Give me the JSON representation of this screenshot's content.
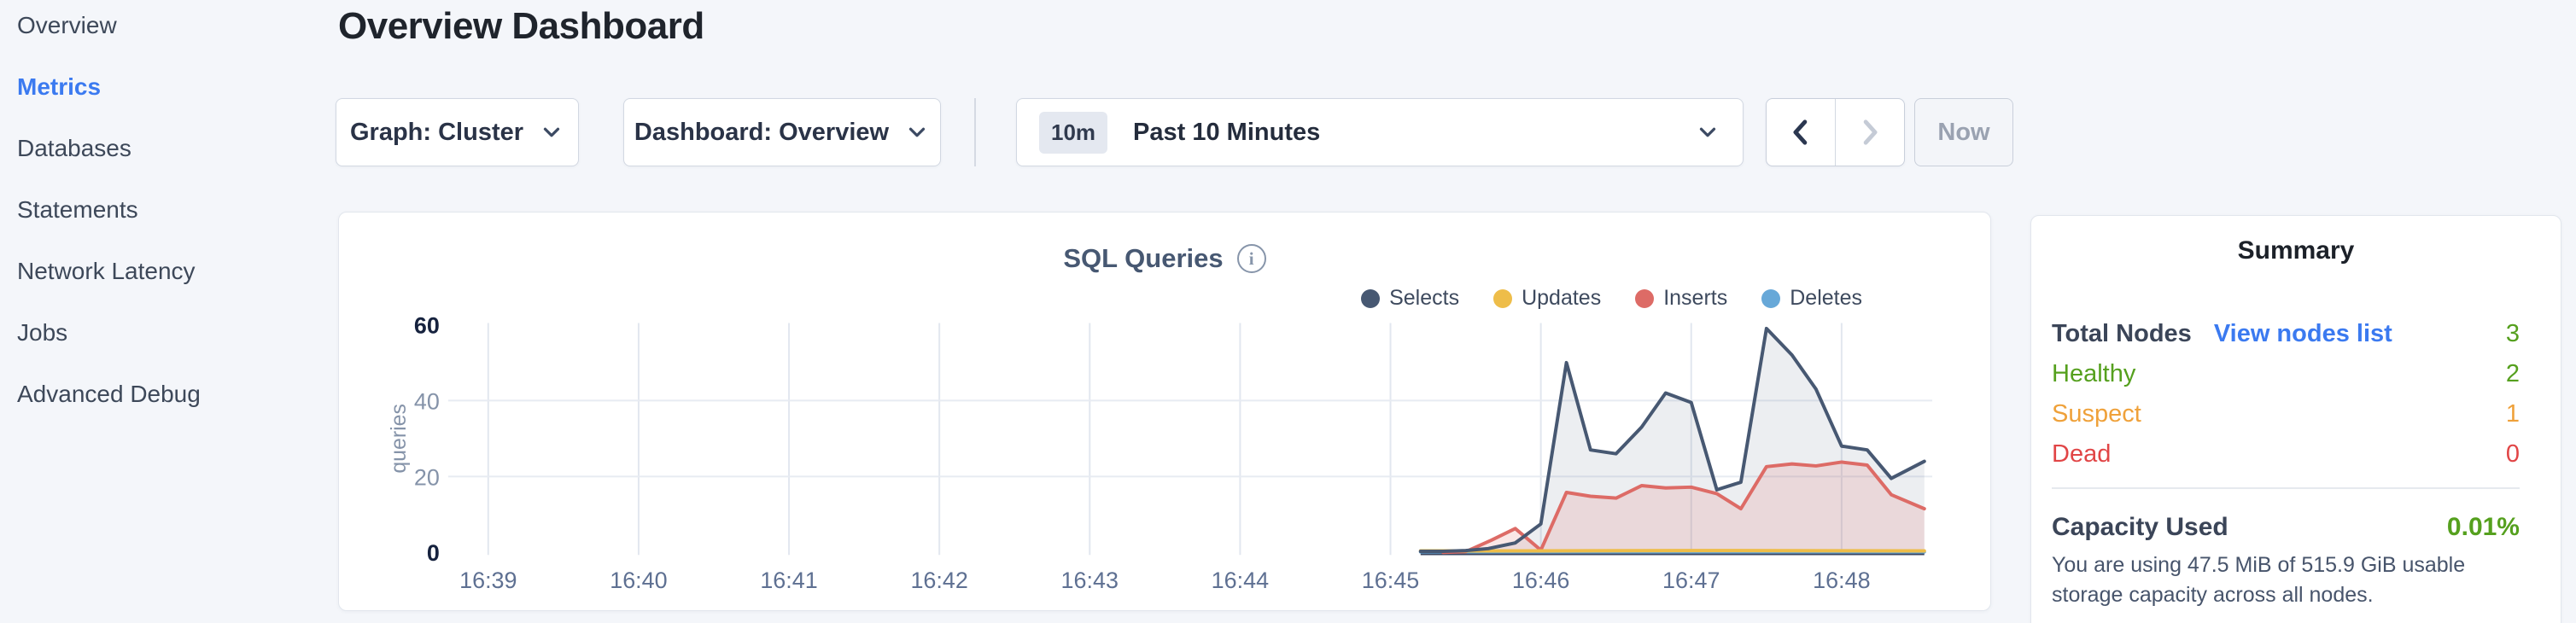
{
  "colors": {
    "accent": "#3b7af0",
    "green": "#55a01e",
    "orange": "#efa13a",
    "red": "#e14546"
  },
  "sidebar": {
    "items": [
      {
        "label": "Overview",
        "active": false
      },
      {
        "label": "Metrics",
        "active": true
      },
      {
        "label": "Databases",
        "active": false
      },
      {
        "label": "Statements",
        "active": false
      },
      {
        "label": "Network Latency",
        "active": false
      },
      {
        "label": "Jobs",
        "active": false
      },
      {
        "label": "Advanced Debug",
        "active": false
      }
    ]
  },
  "header": {
    "title": "Overview Dashboard"
  },
  "toolbar": {
    "graph_dropdown": "Graph: Cluster",
    "dashboard_dropdown": "Dashboard: Overview",
    "time_badge": "10m",
    "time_label": "Past 10 Minutes",
    "now_label": "Now"
  },
  "chart_card": {
    "title": "SQL Queries"
  },
  "chart_data": {
    "type": "area",
    "title": "SQL Queries",
    "ylabel": "queries",
    "ylim": [
      0,
      60
    ],
    "y_ticks": [
      0,
      20,
      40,
      60
    ],
    "x_ticks": [
      "16:39",
      "16:40",
      "16:41",
      "16:42",
      "16:43",
      "16:44",
      "16:45",
      "16:46",
      "16:47",
      "16:48"
    ],
    "x_unit": "minutes after 16:39 (tick index = minute)",
    "grid": true,
    "legend_position": "top-right",
    "series": [
      {
        "name": "Selects",
        "color": "#475872",
        "fill": "rgba(71,88,114,0.10)",
        "points": [
          [
            6.2,
            0.3
          ],
          [
            6.35,
            0.3
          ],
          [
            6.5,
            0.5
          ],
          [
            6.65,
            1.0
          ],
          [
            6.83,
            2.5
          ],
          [
            7.0,
            7.5
          ],
          [
            7.17,
            50
          ],
          [
            7.33,
            27
          ],
          [
            7.5,
            26
          ],
          [
            7.67,
            33
          ],
          [
            7.83,
            42
          ],
          [
            8.0,
            39.5
          ],
          [
            8.17,
            16.5
          ],
          [
            8.33,
            18.5
          ],
          [
            8.5,
            59
          ],
          [
            8.67,
            52
          ],
          [
            8.83,
            43
          ],
          [
            9.0,
            28
          ],
          [
            9.17,
            27
          ],
          [
            9.33,
            19.5
          ],
          [
            9.55,
            24
          ]
        ]
      },
      {
        "name": "Updates",
        "color": "#eebd49",
        "fill": "none",
        "points": [
          [
            6.2,
            0.4
          ],
          [
            7.0,
            0.4
          ],
          [
            8.0,
            0.5
          ],
          [
            9.55,
            0.4
          ]
        ]
      },
      {
        "name": "Inserts",
        "color": "#dd6b66",
        "fill": "rgba(221,107,102,0.16)",
        "points": [
          [
            6.35,
            0.0
          ],
          [
            6.5,
            0.2
          ],
          [
            6.67,
            3.2
          ],
          [
            6.83,
            6.3
          ],
          [
            7.0,
            0.6
          ],
          [
            7.17,
            15.8
          ],
          [
            7.33,
            14.8
          ],
          [
            7.5,
            14.3
          ],
          [
            7.67,
            17.6
          ],
          [
            7.83,
            17.0
          ],
          [
            8.0,
            17.2
          ],
          [
            8.17,
            15.5
          ],
          [
            8.33,
            11.5
          ],
          [
            8.5,
            22.6
          ],
          [
            8.67,
            23.3
          ],
          [
            8.83,
            22.8
          ],
          [
            9.0,
            23.8
          ],
          [
            9.17,
            23.0
          ],
          [
            9.33,
            15.2
          ],
          [
            9.55,
            11.5
          ]
        ]
      },
      {
        "name": "Deletes",
        "color": "#67a8d8",
        "fill": "none",
        "points": [
          [
            6.2,
            0.15
          ],
          [
            9.55,
            0.15
          ]
        ]
      }
    ]
  },
  "summary": {
    "title": "Summary",
    "total_nodes_label": "Total Nodes",
    "view_nodes_link": "View nodes list",
    "total_nodes_value": "3",
    "rows": [
      {
        "label": "Healthy",
        "value": "2",
        "color": "green"
      },
      {
        "label": "Suspect",
        "value": "1",
        "color": "orange"
      },
      {
        "label": "Dead",
        "value": "0",
        "color": "red"
      }
    ],
    "capacity_label": "Capacity Used",
    "capacity_value": "0.01%",
    "capacity_description": "You are using 47.5 MiB of 515.9 GiB usable storage capacity across all nodes."
  }
}
